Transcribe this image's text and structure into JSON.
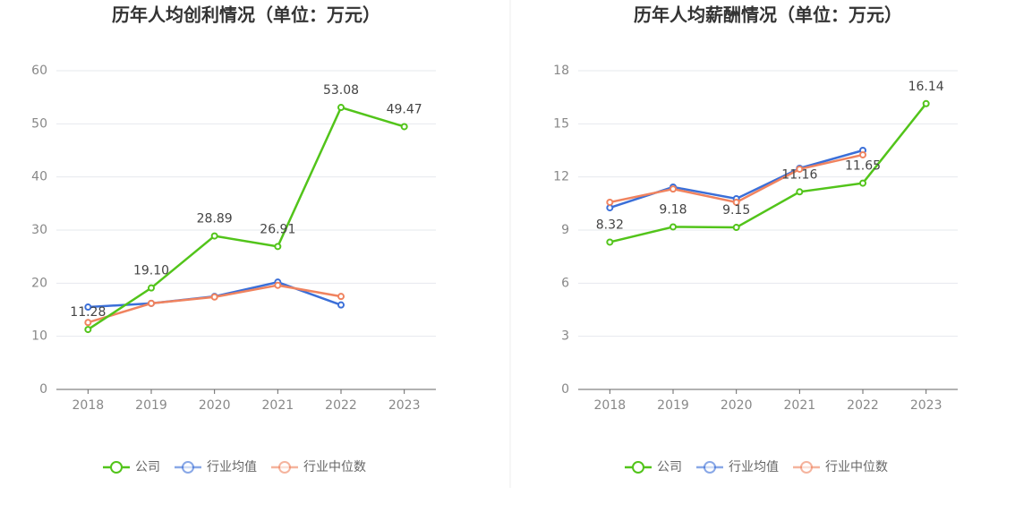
{
  "chart_data": [
    {
      "type": "line",
      "title": "历年人均创利情况（单位：万元）",
      "categories": [
        "2018",
        "2019",
        "2020",
        "2021",
        "2022",
        "2023"
      ],
      "ylim": [
        0,
        60
      ],
      "yticks": [
        0,
        10,
        20,
        30,
        40,
        50,
        60
      ],
      "grid": true,
      "series": [
        {
          "name": "公司",
          "color": "#52c41a",
          "values": [
            11.28,
            19.1,
            28.89,
            26.91,
            53.08,
            49.47
          ],
          "value_labels": [
            "11.28",
            "19.10",
            "28.89",
            "26.91",
            "53.08",
            "49.47"
          ]
        },
        {
          "name": "行业均值",
          "color": "#3b6fd8",
          "values": [
            15.5,
            16.2,
            17.5,
            20.2,
            15.9,
            null
          ]
        },
        {
          "name": "行业中位数",
          "color": "#f0835f",
          "values": [
            12.6,
            16.2,
            17.4,
            19.6,
            17.5,
            null
          ]
        }
      ]
    },
    {
      "type": "line",
      "title": "历年人均薪酬情况（单位：万元）",
      "categories": [
        "2018",
        "2019",
        "2020",
        "2021",
        "2022",
        "2023"
      ],
      "ylim": [
        0,
        18
      ],
      "yticks": [
        0,
        3,
        6,
        9,
        12,
        15,
        18
      ],
      "grid": true,
      "series": [
        {
          "name": "公司",
          "color": "#52c41a",
          "values": [
            8.32,
            9.18,
            9.15,
            11.16,
            11.65,
            16.14
          ],
          "value_labels": [
            "8.32",
            "9.18",
            "9.15",
            "11.16",
            "11.65",
            "16.14"
          ]
        },
        {
          "name": "行业均值",
          "color": "#3b6fd8",
          "values": [
            10.26,
            11.43,
            10.77,
            12.49,
            13.5,
            null
          ]
        },
        {
          "name": "行业中位数",
          "color": "#f0835f",
          "values": [
            10.57,
            11.32,
            10.57,
            12.44,
            13.25,
            null
          ]
        }
      ]
    }
  ]
}
